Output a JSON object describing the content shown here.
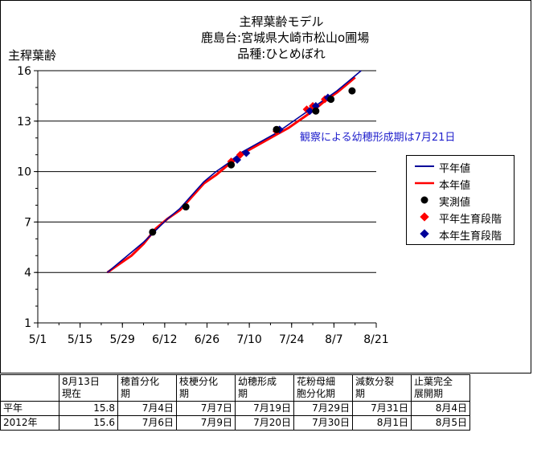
{
  "chart_data": {
    "type": "line",
    "title_lines": [
      "主稈葉齢モデル",
      "鹿島台:宮城県大崎市松山o圃場",
      "品種:ひとめぼれ"
    ],
    "ylabel": "主稈葉齢",
    "ylim": [
      1,
      16
    ],
    "yticks": [
      1,
      4,
      7,
      10,
      13,
      16
    ],
    "x_tick_labels": [
      "5/1",
      "5/15",
      "5/29",
      "6/12",
      "6/26",
      "7/10",
      "7/24",
      "8/7",
      "8/21"
    ],
    "x_tick_days": [
      0,
      14,
      28,
      42,
      56,
      70,
      84,
      98,
      112
    ],
    "xlim_days": [
      0,
      112
    ],
    "grid": "horizontal",
    "legend_position": "right",
    "annotation": "観察による幼穂形成期は7月21日",
    "series": [
      {
        "name": "平年値",
        "kind": "line",
        "color": "#000099",
        "x": [
          23,
          27,
          31,
          35,
          39,
          43,
          47,
          51,
          55,
          59,
          63,
          67,
          71,
          75,
          79,
          83,
          87,
          91,
          95,
          99,
          103,
          107
        ],
        "y": [
          4.0,
          4.6,
          5.2,
          5.8,
          6.5,
          7.2,
          7.8,
          8.6,
          9.4,
          10.0,
          10.5,
          11.1,
          11.5,
          11.9,
          12.3,
          12.8,
          13.3,
          13.8,
          14.3,
          14.8,
          15.4,
          16.0
        ]
      },
      {
        "name": "本年値",
        "kind": "line",
        "color": "#ff0000",
        "x": [
          23,
          27,
          31,
          35,
          39,
          43,
          47,
          51,
          55,
          59,
          63,
          67,
          71,
          75,
          79,
          83,
          87,
          91,
          95,
          99,
          103,
          105
        ],
        "y": [
          4.0,
          4.5,
          5.0,
          5.7,
          6.6,
          7.2,
          7.7,
          8.5,
          9.3,
          9.8,
          10.4,
          11.0,
          11.4,
          11.8,
          12.2,
          12.6,
          13.1,
          13.6,
          14.2,
          14.7,
          15.3,
          15.6
        ]
      },
      {
        "name": "実測値",
        "kind": "points",
        "color": "#000000",
        "x": [
          38,
          49,
          64,
          79,
          92,
          97,
          104
        ],
        "y": [
          6.4,
          7.9,
          10.4,
          12.5,
          13.6,
          14.3,
          14.8
        ]
      },
      {
        "name": "平年生育段階",
        "kind": "points",
        "color": "#ff0000",
        "x": [
          64,
          67,
          79,
          89,
          91,
          95
        ],
        "y": [
          10.6,
          11.0,
          12.4,
          13.7,
          13.9,
          14.3
        ]
      },
      {
        "name": "本年生育段階",
        "kind": "points",
        "color": "#000099",
        "x": [
          66,
          69,
          80,
          90,
          92,
          96
        ],
        "y": [
          10.7,
          11.1,
          12.5,
          13.6,
          13.9,
          14.4
        ]
      }
    ]
  },
  "table": {
    "headers": [
      "",
      "8月13日\n現在",
      "穂首分化\n期",
      "枝梗分化\n期",
      "幼穂形成\n期",
      "花粉母細\n胞分化期",
      "減数分裂\n期",
      "止葉完全\n展開期"
    ],
    "rows": [
      [
        "平年",
        "15.8",
        "7月4日",
        "7月7日",
        "7月19日",
        "7月29日",
        "7月31日",
        "8月4日"
      ],
      [
        "2012年",
        "15.6",
        "7月6日",
        "7月9日",
        "7月20日",
        "7月30日",
        "8月1日",
        "8月5日"
      ]
    ]
  }
}
